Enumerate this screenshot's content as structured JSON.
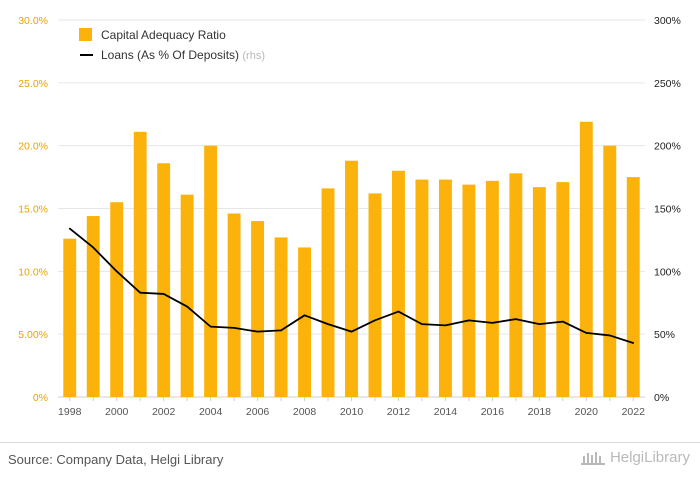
{
  "source": "Source: Company Data, Helgi Library",
  "brand": "HelgiLibrary",
  "chart_data": {
    "type": "bar",
    "x": [
      1998,
      1999,
      2000,
      2001,
      2002,
      2003,
      2004,
      2005,
      2006,
      2007,
      2008,
      2009,
      2010,
      2011,
      2012,
      2013,
      2014,
      2015,
      2016,
      2017,
      2018,
      2019,
      2020,
      2021,
      2022
    ],
    "x_tick_labels": [
      "1998",
      "2000",
      "2002",
      "2004",
      "2006",
      "2008",
      "2010",
      "2012",
      "2014",
      "2016",
      "2018",
      "2020",
      "2022"
    ],
    "series": [
      {
        "name": "Capital Adequacy Ratio",
        "type": "bar",
        "axis": "left",
        "color": "#fbb30b",
        "values": [
          12.6,
          14.4,
          15.5,
          21.1,
          18.6,
          16.1,
          20.0,
          14.6,
          14.0,
          12.7,
          11.9,
          16.6,
          18.8,
          16.2,
          18.0,
          17.3,
          17.3,
          16.9,
          17.2,
          17.8,
          16.7,
          17.1,
          21.9,
          20.0,
          17.5
        ]
      },
      {
        "name": "Loans (As % Of Deposits)",
        "name_suffix": "(rhs)",
        "type": "line",
        "axis": "right",
        "color": "#000000",
        "values": [
          134,
          119,
          100,
          83,
          82,
          72,
          56,
          55,
          52,
          53,
          65,
          58,
          52,
          61,
          68,
          58,
          57,
          61,
          59,
          62,
          58,
          60,
          51,
          49,
          43
        ]
      }
    ],
    "y_left": {
      "min": 0,
      "max": 30,
      "ticks": [
        "0%",
        "5.00%",
        "10.0%",
        "15.0%",
        "20.0%",
        "25.0%",
        "30.0%"
      ]
    },
    "y_right": {
      "min": 0,
      "max": 300,
      "ticks": [
        "0%",
        "50%",
        "100%",
        "150%",
        "200%",
        "250%",
        "300%"
      ]
    },
    "grid": true,
    "legend_position": "top-left"
  }
}
